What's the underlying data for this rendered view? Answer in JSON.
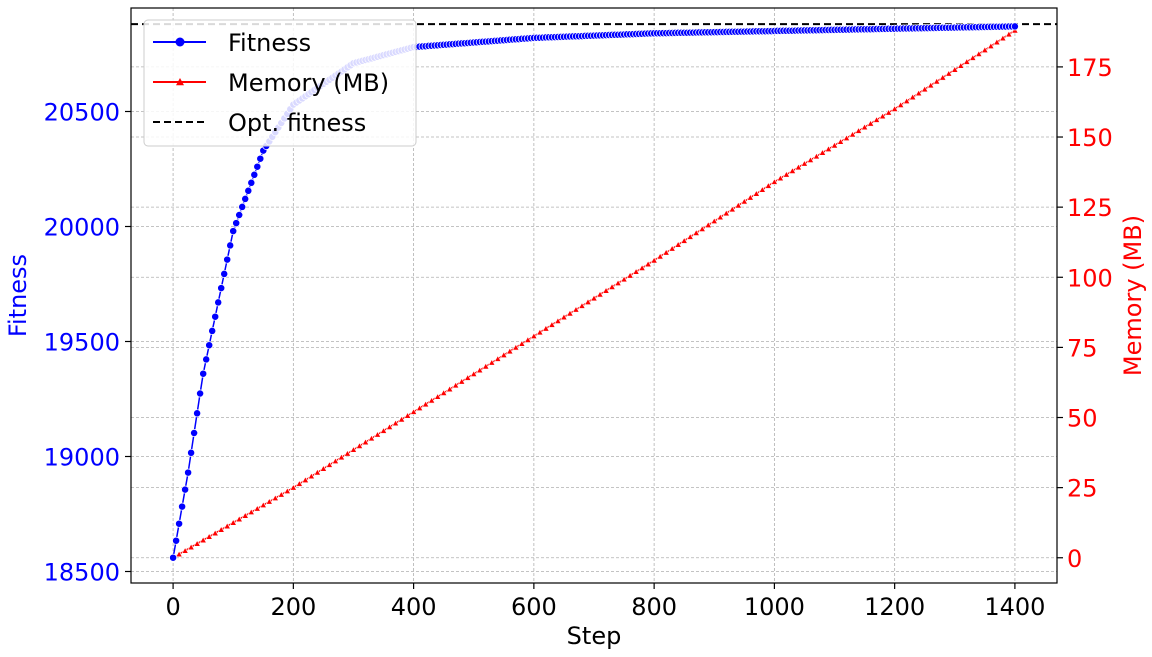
{
  "chart_data": {
    "type": "line",
    "title": "",
    "xlabel": "Step",
    "ylabel_left": "Fitness",
    "ylabel_right": "Memory (MB)",
    "x_ticks": [
      0,
      200,
      400,
      600,
      800,
      1000,
      1200,
      1400
    ],
    "y_left_ticks": [
      18500,
      19000,
      19500,
      20000,
      20500
    ],
    "y_right_ticks": [
      0,
      25,
      50,
      75,
      100,
      125,
      150,
      175
    ],
    "xlim": [
      -70,
      1470
    ],
    "ylim_left": [
      18450,
      20950
    ],
    "ylim_right": [
      -9,
      196
    ],
    "grid": true,
    "legend_position": "top-left",
    "colors": {
      "fitness": "#0000ff",
      "memory": "#ff0000",
      "optimum": "#000000",
      "grid": "#b0b0b0"
    },
    "legend": [
      {
        "label": "Fitness",
        "color": "#0000ff",
        "style": "solid",
        "marker": "circle"
      },
      {
        "label": "Memory (MB)",
        "color": "#ff0000",
        "style": "solid",
        "marker": "triangle"
      },
      {
        "label": "Opt. fitness",
        "color": "#000000",
        "style": "dashed",
        "marker": "none"
      }
    ],
    "series": [
      {
        "name": "Fitness",
        "axis": "left",
        "x_range": [
          0,
          1400
        ],
        "x_step": 5,
        "start": 18560,
        "end": 20870,
        "curve": "saturating-exponential",
        "samples": [
          [
            0,
            18560
          ],
          [
            25,
            18930
          ],
          [
            50,
            19360
          ],
          [
            100,
            19980
          ],
          [
            150,
            20330
          ],
          [
            200,
            20530
          ],
          [
            300,
            20710
          ],
          [
            400,
            20780
          ],
          [
            600,
            20820
          ],
          [
            800,
            20840
          ],
          [
            1000,
            20850
          ],
          [
            1200,
            20860
          ],
          [
            1400,
            20870
          ]
        ]
      },
      {
        "name": "Memory (MB)",
        "axis": "right",
        "x_range": [
          0,
          1400
        ],
        "x_step": 10,
        "samples": [
          [
            0,
            0
          ],
          [
            200,
            25
          ],
          [
            400,
            52
          ],
          [
            600,
            79
          ],
          [
            800,
            106
          ],
          [
            1000,
            134
          ],
          [
            1200,
            160
          ],
          [
            1400,
            188
          ]
        ]
      },
      {
        "name": "Opt. fitness",
        "axis": "left",
        "value": 20880
      }
    ]
  }
}
